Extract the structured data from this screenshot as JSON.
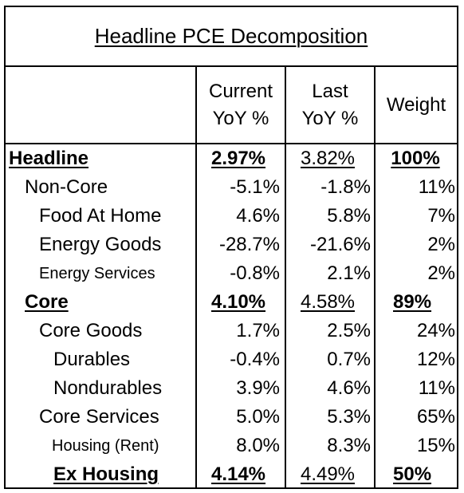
{
  "title": "Headline PCE Decomposition",
  "columns": {
    "current_line1": "Current",
    "current_line2": "YoY %",
    "last_line1": "Last",
    "last_line2": "YoY %",
    "weight": "Weight"
  },
  "rows": [
    {
      "label": "Headline",
      "current": "2.97%",
      "last": "3.82%",
      "weight": "100%"
    },
    {
      "label": "Non-Core",
      "current": "-5.1%",
      "last": "-1.8%",
      "weight": "11%"
    },
    {
      "label": "Food At Home",
      "current": "4.6%",
      "last": "5.8%",
      "weight": "7%"
    },
    {
      "label": "Energy Goods",
      "current": "-28.7%",
      "last": "-21.6%",
      "weight": "2%"
    },
    {
      "label": "Energy Services",
      "current": "-0.8%",
      "last": "2.1%",
      "weight": "2%"
    },
    {
      "label": "Core",
      "current": "4.10%",
      "last": "4.58%",
      "weight": "89%"
    },
    {
      "label": "Core Goods",
      "current": "1.7%",
      "last": "2.5%",
      "weight": "24%"
    },
    {
      "label": "Durables",
      "current": "-0.4%",
      "last": "0.7%",
      "weight": "12%"
    },
    {
      "label": "Nondurables",
      "current": "3.9%",
      "last": "4.6%",
      "weight": "11%"
    },
    {
      "label": "Core Services",
      "current": "5.0%",
      "last": "5.3%",
      "weight": "65%"
    },
    {
      "label": "Housing (Rent)",
      "current": "8.0%",
      "last": "8.3%",
      "weight": "15%"
    },
    {
      "label": "Ex Housing",
      "current": "4.14%",
      "last": "4.49%",
      "weight": "50%"
    }
  ]
}
